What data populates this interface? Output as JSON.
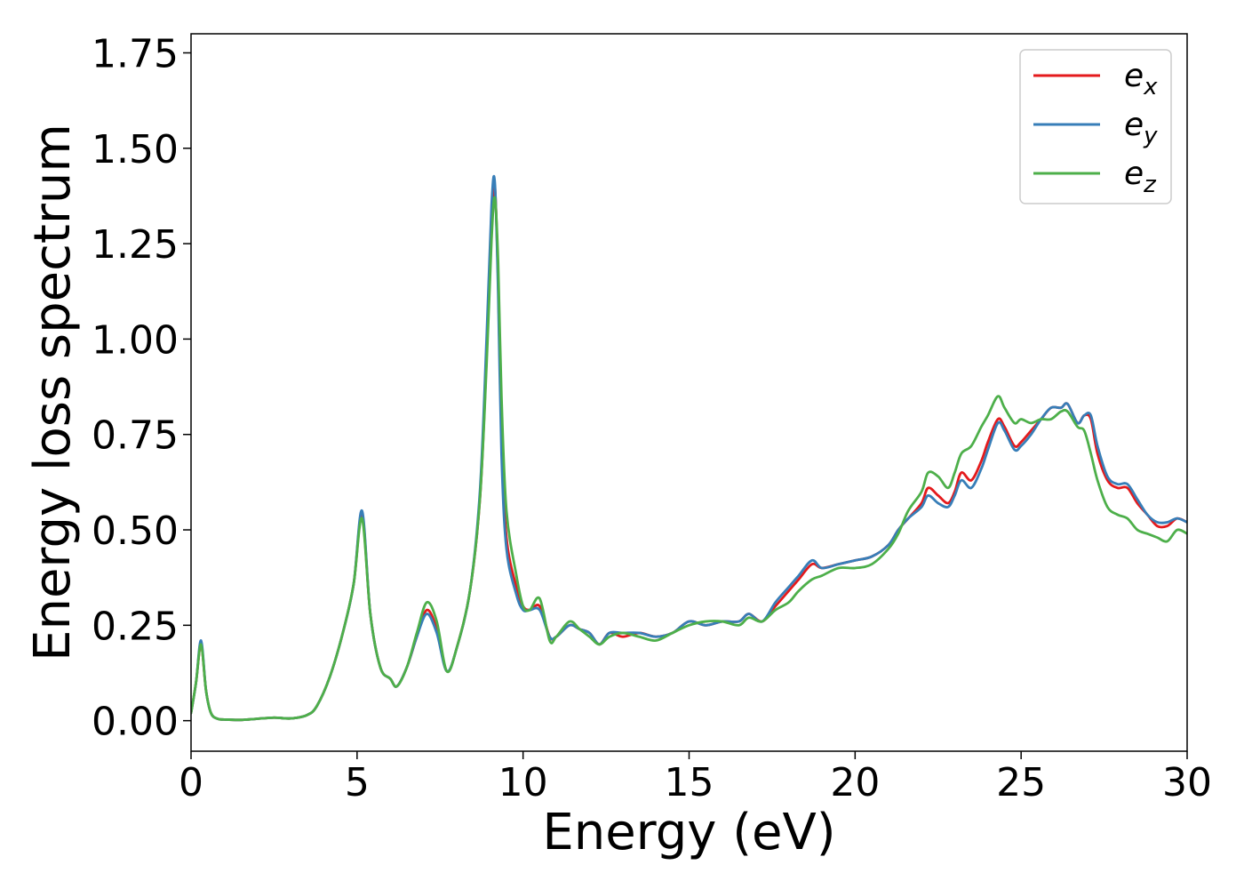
{
  "chart_data": {
    "type": "line",
    "title": "",
    "xlabel": "Energy (eV)",
    "ylabel": "Energy loss spectrum",
    "xlim": [
      0,
      30
    ],
    "ylim": [
      -0.08,
      1.8
    ],
    "xticks": [
      0,
      5,
      10,
      15,
      20,
      25,
      30
    ],
    "xtick_labels": [
      "0",
      "5",
      "10",
      "15",
      "20",
      "25",
      "30"
    ],
    "yticks": [
      0.0,
      0.25,
      0.5,
      0.75,
      1.0,
      1.25,
      1.5,
      1.75
    ],
    "ytick_labels": [
      "0.00",
      "0.25",
      "0.50",
      "0.75",
      "1.00",
      "1.25",
      "1.50",
      "1.75"
    ],
    "grid": false,
    "legend_position": "top-right",
    "series": [
      {
        "name": "e_x",
        "label_base": "e",
        "label_sub": "x",
        "color": "#e41a1c",
        "x": [
          0,
          0.15,
          0.3,
          0.45,
          0.6,
          0.8,
          1,
          1.5,
          2,
          2.5,
          3,
          3.5,
          3.8,
          4.2,
          4.6,
          4.9,
          5.15,
          5.4,
          5.7,
          6,
          6.2,
          6.5,
          6.8,
          7.1,
          7.4,
          7.7,
          8,
          8.4,
          8.7,
          8.9,
          9.05,
          9.15,
          9.25,
          9.35,
          9.5,
          9.8,
          10,
          10.2,
          10.5,
          10.8,
          11,
          11.4,
          11.7,
          12,
          12.3,
          12.6,
          13,
          13.5,
          14,
          14.5,
          15,
          15.5,
          16,
          16.5,
          16.8,
          17.2,
          17.6,
          18,
          18.3,
          18.7,
          19,
          19.5,
          20,
          20.5,
          21,
          21.3,
          21.6,
          22,
          22.2,
          22.5,
          22.8,
          23,
          23.2,
          23.5,
          23.8,
          24,
          24.3,
          24.5,
          24.8,
          25,
          25.3,
          25.6,
          25.9,
          26.2,
          26.4,
          26.7,
          26.9,
          27.1,
          27.3,
          27.6,
          27.9,
          28.2,
          28.5,
          28.8,
          29.1,
          29.4,
          29.7,
          30
        ],
        "y": [
          0.02,
          0.1,
          0.2,
          0.08,
          0.02,
          0.005,
          0.003,
          0.002,
          0.005,
          0.008,
          0.006,
          0.015,
          0.04,
          0.12,
          0.24,
          0.36,
          0.54,
          0.28,
          0.14,
          0.11,
          0.09,
          0.14,
          0.22,
          0.29,
          0.24,
          0.13,
          0.19,
          0.34,
          0.58,
          0.95,
          1.3,
          1.4,
          1.15,
          0.75,
          0.48,
          0.35,
          0.3,
          0.29,
          0.3,
          0.22,
          0.22,
          0.25,
          0.24,
          0.23,
          0.2,
          0.23,
          0.22,
          0.23,
          0.22,
          0.23,
          0.26,
          0.25,
          0.26,
          0.26,
          0.28,
          0.26,
          0.3,
          0.34,
          0.37,
          0.41,
          0.4,
          0.41,
          0.42,
          0.43,
          0.46,
          0.5,
          0.53,
          0.57,
          0.61,
          0.59,
          0.57,
          0.6,
          0.65,
          0.63,
          0.68,
          0.73,
          0.79,
          0.77,
          0.72,
          0.73,
          0.76,
          0.79,
          0.82,
          0.82,
          0.83,
          0.78,
          0.8,
          0.79,
          0.7,
          0.63,
          0.61,
          0.61,
          0.57,
          0.54,
          0.51,
          0.51,
          0.53,
          0.52
        ]
      },
      {
        "name": "e_y",
        "label_base": "e",
        "label_sub": "y",
        "color": "#377eb8",
        "x": [
          0,
          0.15,
          0.3,
          0.45,
          0.6,
          0.8,
          1,
          1.5,
          2,
          2.5,
          3,
          3.5,
          3.8,
          4.2,
          4.6,
          4.9,
          5.15,
          5.4,
          5.7,
          6,
          6.2,
          6.5,
          6.8,
          7.1,
          7.4,
          7.7,
          8,
          8.4,
          8.7,
          8.9,
          9.05,
          9.15,
          9.25,
          9.35,
          9.5,
          9.8,
          10,
          10.2,
          10.5,
          10.8,
          11,
          11.4,
          11.7,
          12,
          12.3,
          12.6,
          13,
          13.5,
          14,
          14.5,
          15,
          15.5,
          16,
          16.5,
          16.8,
          17.2,
          17.6,
          18,
          18.3,
          18.7,
          19,
          19.5,
          20,
          20.5,
          21,
          21.3,
          21.6,
          22,
          22.2,
          22.5,
          22.8,
          23,
          23.2,
          23.5,
          23.8,
          24,
          24.3,
          24.5,
          24.8,
          25,
          25.3,
          25.6,
          25.9,
          26.2,
          26.4,
          26.7,
          26.9,
          27.1,
          27.3,
          27.6,
          27.9,
          28.2,
          28.5,
          28.8,
          29.1,
          29.4,
          29.7,
          30
        ],
        "y": [
          0.02,
          0.1,
          0.21,
          0.08,
          0.02,
          0.005,
          0.003,
          0.002,
          0.005,
          0.008,
          0.006,
          0.015,
          0.04,
          0.12,
          0.24,
          0.36,
          0.55,
          0.28,
          0.14,
          0.11,
          0.09,
          0.14,
          0.22,
          0.28,
          0.23,
          0.13,
          0.19,
          0.34,
          0.6,
          1.0,
          1.35,
          1.41,
          1.12,
          0.7,
          0.45,
          0.33,
          0.29,
          0.29,
          0.29,
          0.22,
          0.22,
          0.25,
          0.24,
          0.23,
          0.2,
          0.23,
          0.23,
          0.23,
          0.22,
          0.23,
          0.26,
          0.25,
          0.26,
          0.26,
          0.28,
          0.26,
          0.31,
          0.35,
          0.38,
          0.42,
          0.4,
          0.41,
          0.42,
          0.43,
          0.46,
          0.5,
          0.53,
          0.56,
          0.59,
          0.57,
          0.56,
          0.59,
          0.63,
          0.61,
          0.66,
          0.71,
          0.78,
          0.76,
          0.71,
          0.72,
          0.75,
          0.79,
          0.82,
          0.82,
          0.83,
          0.78,
          0.8,
          0.8,
          0.72,
          0.64,
          0.62,
          0.62,
          0.58,
          0.54,
          0.52,
          0.52,
          0.53,
          0.52
        ]
      },
      {
        "name": "e_z",
        "label_base": "e",
        "label_sub": "z",
        "color": "#4daf4a",
        "x": [
          0,
          0.15,
          0.3,
          0.45,
          0.6,
          0.8,
          1,
          1.5,
          2,
          2.5,
          3,
          3.5,
          3.8,
          4.2,
          4.6,
          4.9,
          5.15,
          5.4,
          5.7,
          6,
          6.2,
          6.5,
          6.8,
          7.1,
          7.4,
          7.7,
          8,
          8.4,
          8.7,
          8.9,
          9.05,
          9.15,
          9.25,
          9.35,
          9.5,
          9.8,
          10,
          10.2,
          10.5,
          10.8,
          11,
          11.4,
          11.7,
          12,
          12.3,
          12.6,
          13,
          13.5,
          14,
          14.5,
          15,
          15.5,
          16,
          16.5,
          16.8,
          17.2,
          17.6,
          18,
          18.3,
          18.7,
          19,
          19.5,
          20,
          20.5,
          21,
          21.3,
          21.6,
          22,
          22.2,
          22.5,
          22.8,
          23,
          23.2,
          23.5,
          23.8,
          24,
          24.3,
          24.5,
          24.8,
          25,
          25.3,
          25.6,
          25.9,
          26.2,
          26.4,
          26.7,
          26.9,
          27.1,
          27.3,
          27.6,
          27.9,
          28.2,
          28.5,
          28.8,
          29.1,
          29.4,
          29.7,
          30
        ],
        "y": [
          0.02,
          0.1,
          0.2,
          0.08,
          0.02,
          0.005,
          0.003,
          0.002,
          0.005,
          0.008,
          0.006,
          0.015,
          0.04,
          0.12,
          0.24,
          0.36,
          0.53,
          0.28,
          0.14,
          0.11,
          0.09,
          0.14,
          0.23,
          0.31,
          0.26,
          0.13,
          0.19,
          0.34,
          0.58,
          0.93,
          1.26,
          1.37,
          1.2,
          0.85,
          0.55,
          0.38,
          0.3,
          0.29,
          0.32,
          0.21,
          0.22,
          0.26,
          0.24,
          0.22,
          0.2,
          0.22,
          0.23,
          0.22,
          0.21,
          0.23,
          0.25,
          0.26,
          0.26,
          0.25,
          0.27,
          0.26,
          0.29,
          0.31,
          0.34,
          0.37,
          0.38,
          0.4,
          0.4,
          0.41,
          0.45,
          0.49,
          0.55,
          0.6,
          0.65,
          0.64,
          0.61,
          0.65,
          0.7,
          0.72,
          0.77,
          0.8,
          0.85,
          0.82,
          0.78,
          0.79,
          0.78,
          0.79,
          0.79,
          0.81,
          0.81,
          0.77,
          0.76,
          0.7,
          0.63,
          0.56,
          0.54,
          0.53,
          0.5,
          0.49,
          0.48,
          0.47,
          0.5,
          0.49
        ]
      }
    ]
  }
}
